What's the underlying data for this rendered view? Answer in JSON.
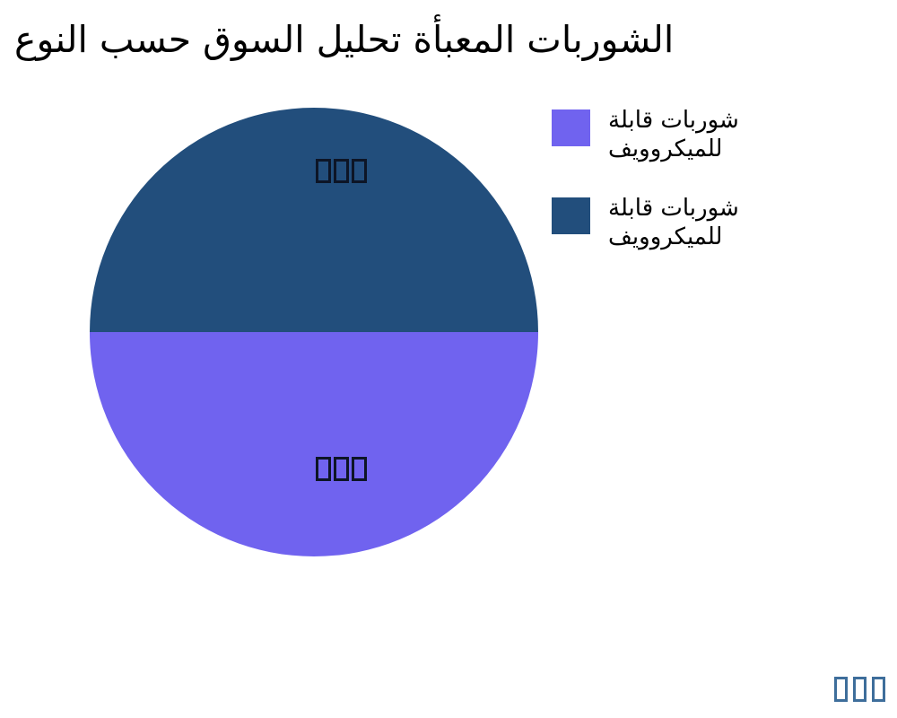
{
  "title": {
    "text": "الشوربات المعبأة تحليل السوق حسب النوع",
    "color": "#000000"
  },
  "chart_data": {
    "type": "pie",
    "title": "الشوربات المعبأة تحليل السوق حسب النوع",
    "slices": [
      {
        "label": "شوربات قابلة للميكروويف",
        "value": 50,
        "color": "#224E7C",
        "position": "top half",
        "slice_label_text": "□□□"
      },
      {
        "label": "شوربات قابلة للميكروويف",
        "value": 50,
        "color": "#7063EF",
        "position": "bottom half",
        "slice_label_text": "□□□"
      }
    ],
    "legend_position": "upper right",
    "background": "#ffffff"
  },
  "pie": {
    "top_color": "#224E7C",
    "bottom_color": "#7063EF",
    "label_top": "□□□",
    "label_bottom": "□□□",
    "label_color": "#0D1526"
  },
  "legend": {
    "items": [
      {
        "label": "شوربات قابلة\nللميكروويف",
        "color": "#7063EF"
      },
      {
        "label": "شوربات قابلة\nللميكروويف",
        "color": "#224E7C"
      }
    ]
  },
  "watermark": {
    "text": "□□□",
    "color": "#3E6E9B"
  }
}
